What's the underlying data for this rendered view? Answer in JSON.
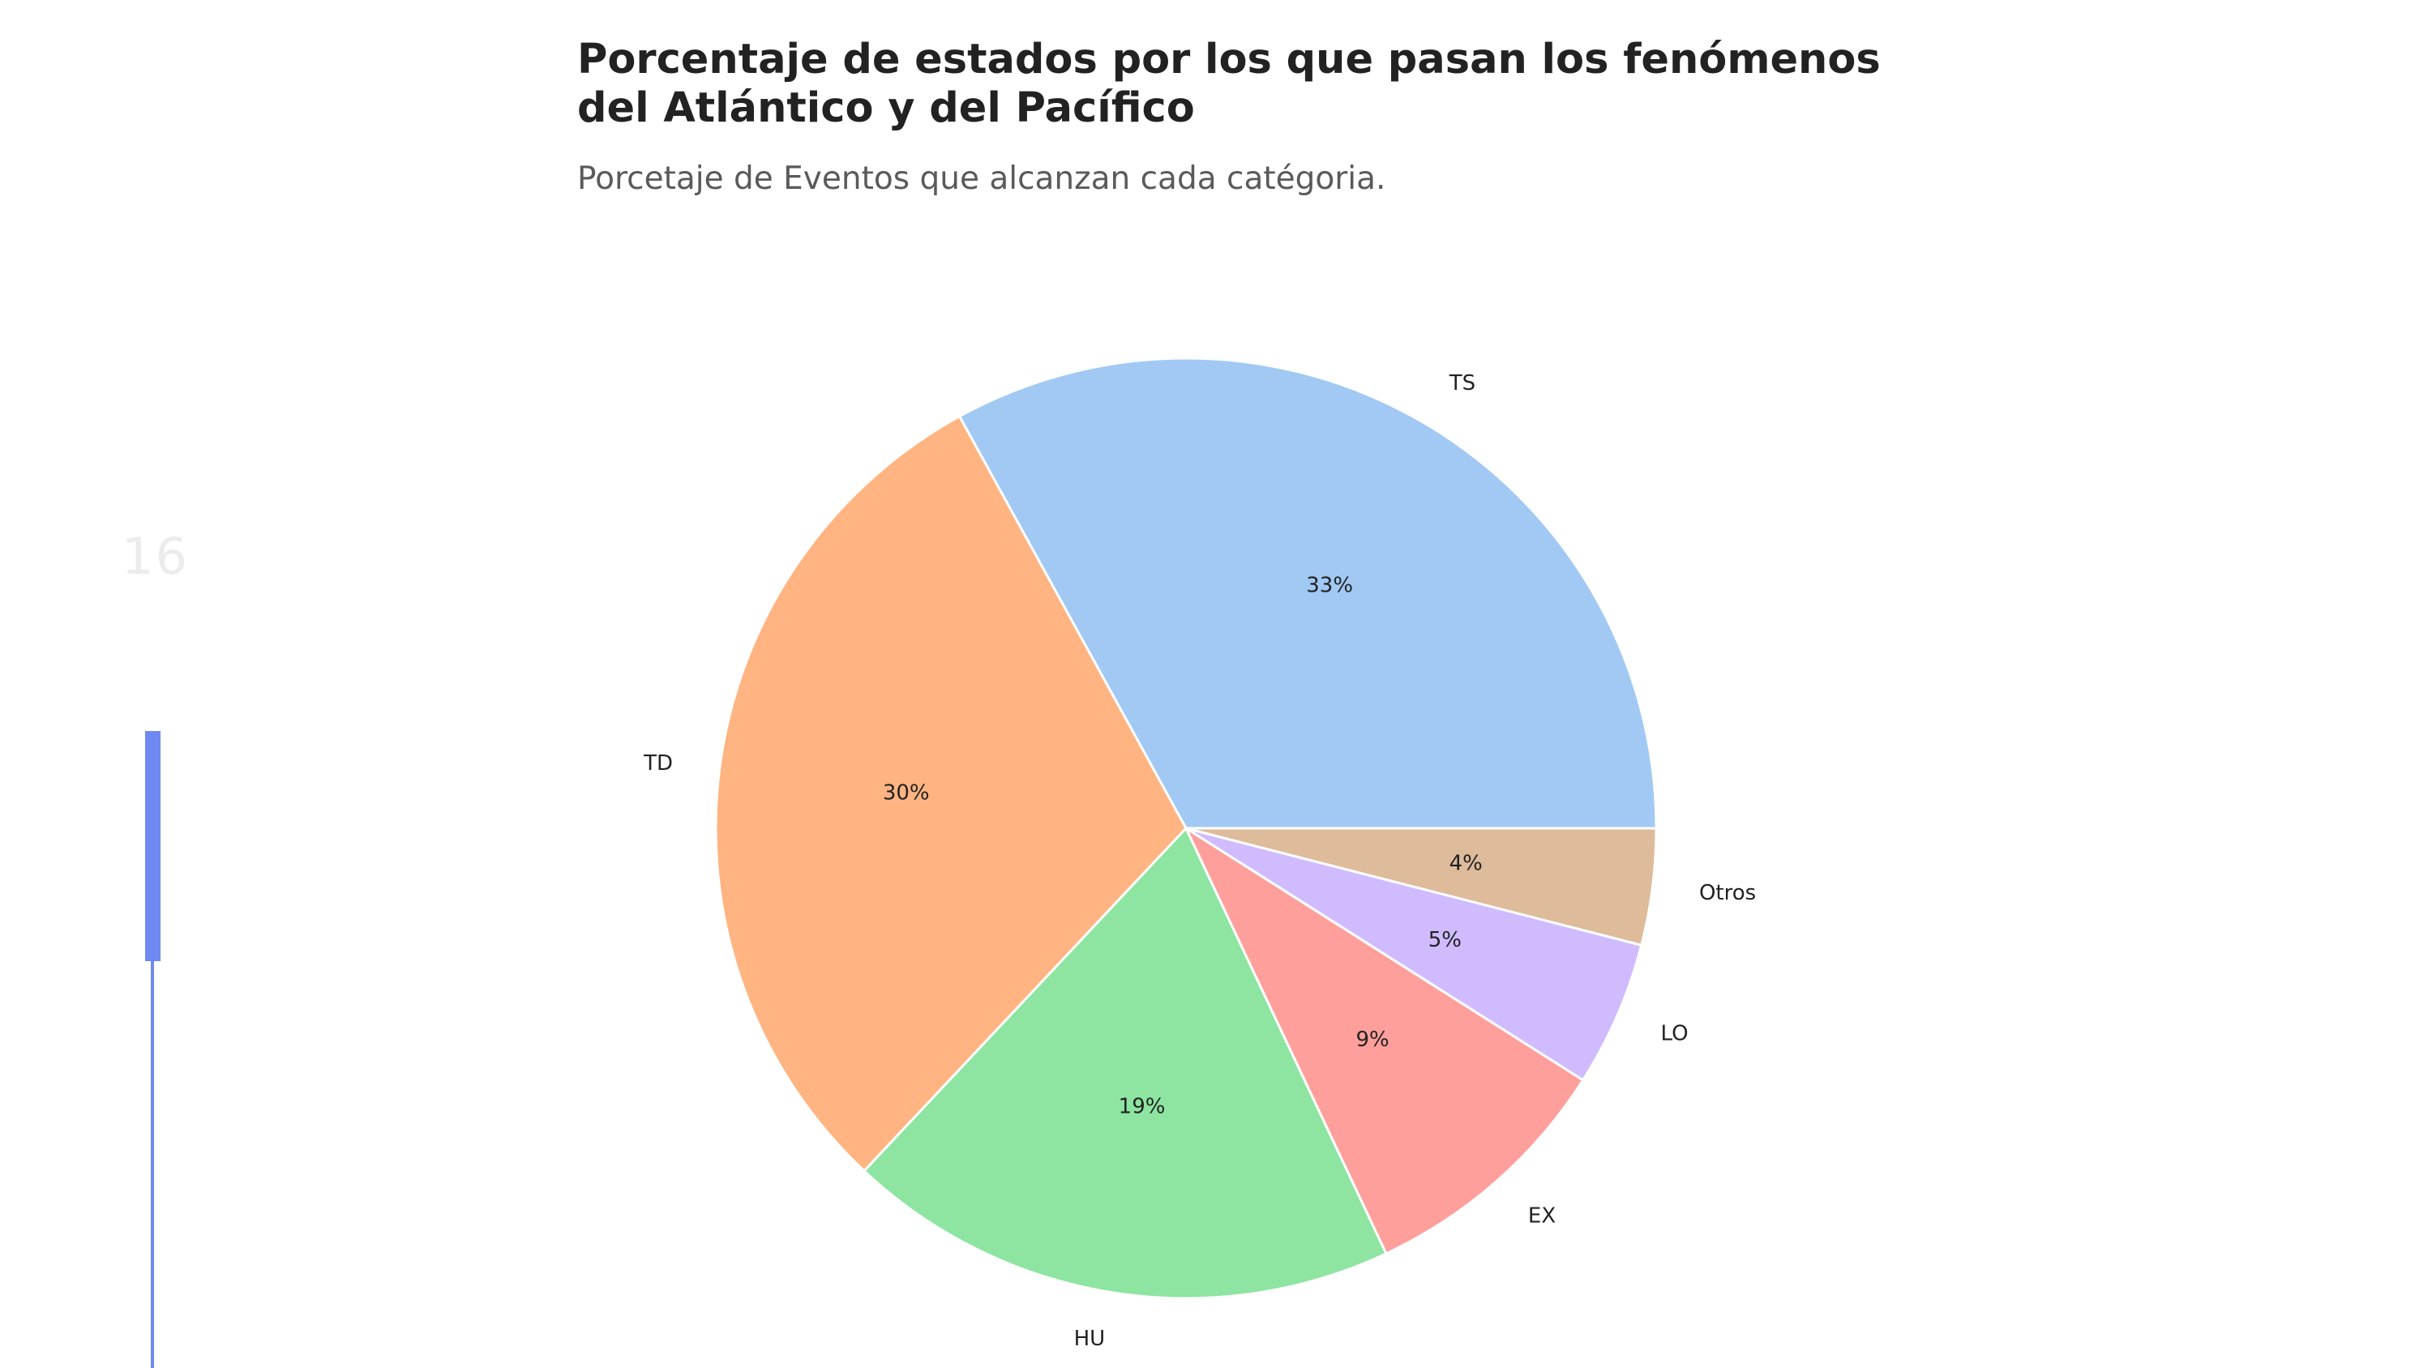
{
  "slide": {
    "number": "16",
    "accent_color": "#6f89f2",
    "progress": 0.18
  },
  "chart_data": {
    "type": "pie",
    "title": "Porcentaje de estados por los que pasan los fenómenos del Atlántico y del Pacífico",
    "subtitle": "Porcetaje de Eventos que alcanzan cada catégoria.",
    "direction": "counterclockwise",
    "start_angle_deg": 0,
    "slices": [
      {
        "label": "TS",
        "value": 33,
        "pct_label": "33%",
        "color": "#a1c9f4"
      },
      {
        "label": "TD",
        "value": 30,
        "pct_label": "30%",
        "color": "#ffb482"
      },
      {
        "label": "HU",
        "value": 19,
        "pct_label": "19%",
        "color": "#8de5a1"
      },
      {
        "label": "EX",
        "value": 9,
        "pct_label": "9%",
        "color": "#ff9f9b"
      },
      {
        "label": "LO",
        "value": 5,
        "pct_label": "5%",
        "color": "#d0bbff"
      },
      {
        "label": "Otros",
        "value": 4,
        "pct_label": "4%",
        "color": "#debb9b"
      }
    ]
  }
}
